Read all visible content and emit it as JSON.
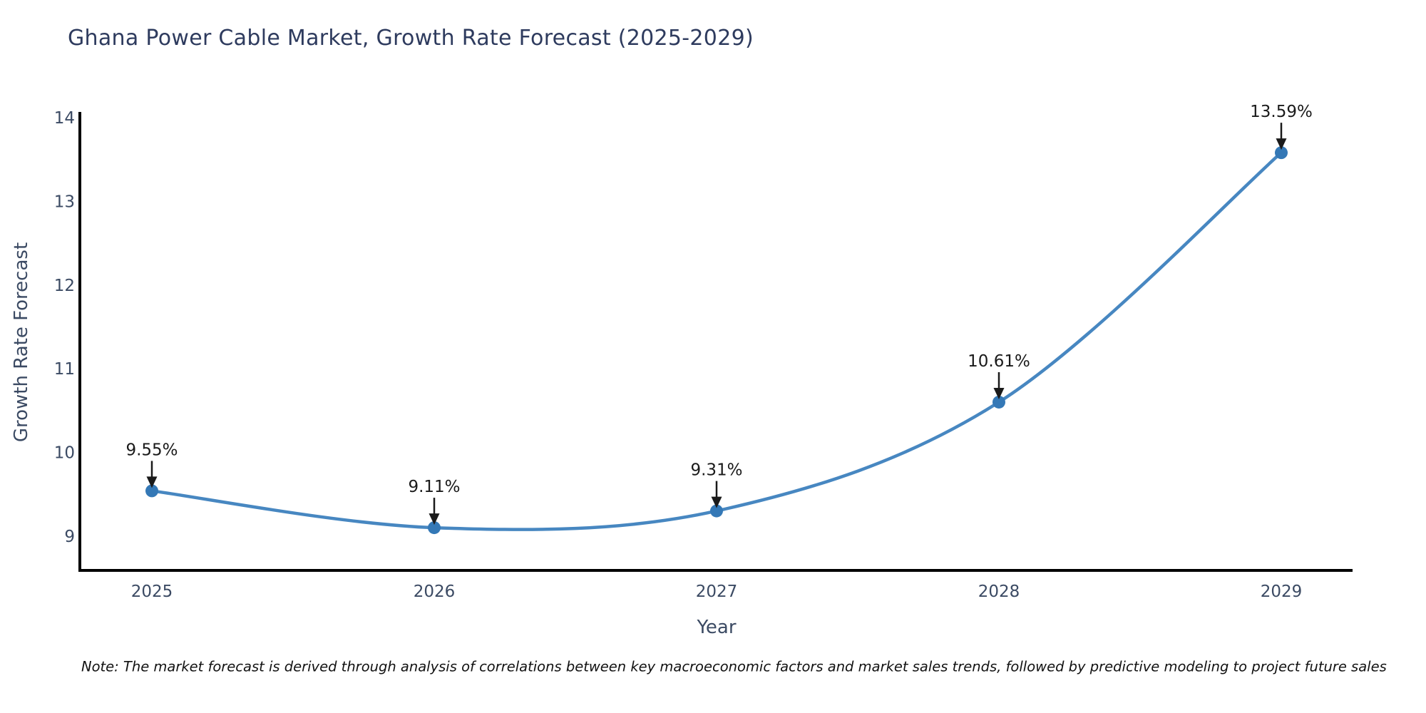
{
  "title": "Ghana Power Cable Market, Growth Rate Forecast (2025-2029)",
  "note": "Note: The market forecast is derived through analysis of correlations between key macroeconomic factors and market sales trends, followed by predictive modeling to project future sales",
  "chart_data": {
    "type": "line",
    "x": [
      2025,
      2026,
      2027,
      2028,
      2029
    ],
    "series": [
      {
        "name": "Growth Rate Forecast",
        "values": [
          9.55,
          9.11,
          9.31,
          10.61,
          13.59
        ]
      }
    ],
    "point_labels": [
      "9.55%",
      "9.11%",
      "9.31%",
      "10.61%",
      "13.59%"
    ],
    "title": "Ghana Power Cable Market, Growth Rate Forecast (2025-2029)",
    "xlabel": "Year",
    "ylabel": "Growth Rate Forecast",
    "ylim": [
      8.6,
      14.08
    ],
    "yticks": [
      9,
      10,
      11,
      12,
      13,
      14
    ],
    "grid": false,
    "legend": "none",
    "smooth": true,
    "annotations_arrow": "down-to-point",
    "colors": {
      "line": "#4787c1",
      "marker": "#3478b6",
      "axis": "#000000",
      "tick_label": "#3b4a63",
      "title": "#2e3b5e",
      "annotation": "#1a1a1a"
    }
  }
}
